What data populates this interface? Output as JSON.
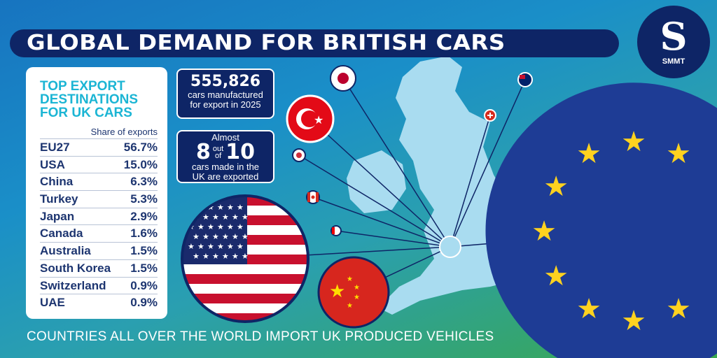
{
  "title": "GLOBAL DEMAND FOR BRITISH CARS",
  "logo": {
    "text": "SMMT"
  },
  "table": {
    "heading": "TOP EXPORT DESTINATIONS FOR UK CARS",
    "column_header": "Share of exports",
    "rows": [
      {
        "country": "EU27",
        "share": "56.7%"
      },
      {
        "country": "USA",
        "share": "15.0%"
      },
      {
        "country": "China",
        "share": "6.3%"
      },
      {
        "country": "Turkey",
        "share": "5.3%"
      },
      {
        "country": "Japan",
        "share": "2.9%"
      },
      {
        "country": "Canada",
        "share": "1.6%"
      },
      {
        "country": "Australia",
        "share": "1.5%"
      },
      {
        "country": "South Korea",
        "share": "1.5%"
      },
      {
        "country": "Switzerland",
        "share": "0.9%"
      },
      {
        "country": "UAE",
        "share": "0.9%"
      }
    ]
  },
  "stat1": {
    "value": "555,826",
    "line1": "cars manufactured",
    "line2": "for export in 2025"
  },
  "stat2": {
    "prefix": "Almost",
    "num1": "8",
    "out": "out",
    "of": "of",
    "num2": "10",
    "line1": "cars made in the",
    "line2": "UK are exported"
  },
  "footer": "COUNTRIES ALL OVER THE WORLD IMPORT UK PRODUCED VEHICLES",
  "colors": {
    "navy": "#0e2566",
    "accent": "#1bb5d4",
    "map": "#a9dcf0",
    "eu_blue": "#1e3c95",
    "star": "#ffd21f"
  },
  "chart_data": {
    "type": "table",
    "title": "TOP EXPORT DESTINATIONS FOR UK CARS",
    "columns": [
      "",
      "Share of exports"
    ],
    "categories": [
      "EU27",
      "USA",
      "China",
      "Turkey",
      "Japan",
      "Canada",
      "Australia",
      "South Korea",
      "Switzerland",
      "UAE"
    ],
    "values": [
      56.7,
      15.0,
      6.3,
      5.3,
      2.9,
      1.6,
      1.5,
      1.5,
      0.9,
      0.9
    ]
  }
}
